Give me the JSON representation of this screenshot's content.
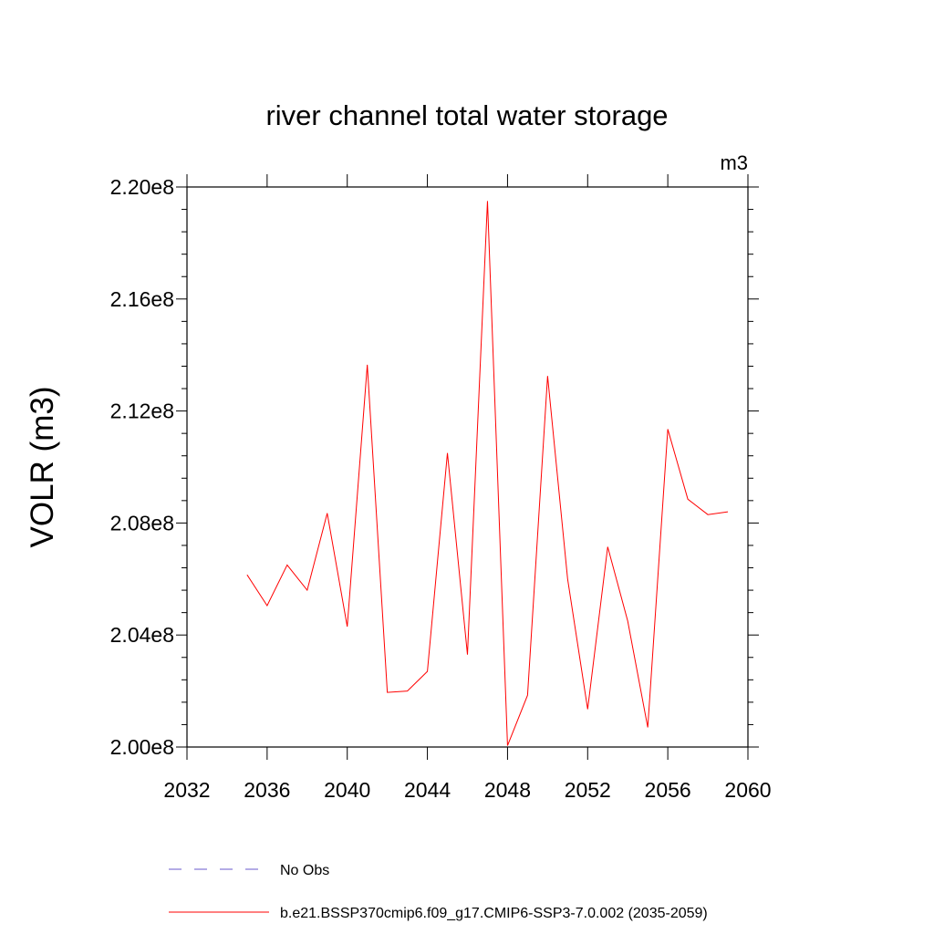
{
  "chart_data": {
    "type": "line",
    "title": "river channel total water storage",
    "units": "m3",
    "ylabel": "VOLR  (m3)",
    "xlabel": "",
    "xlim": [
      2032,
      2060
    ],
    "ylim": [
      200000000,
      220000000
    ],
    "x_ticks": [
      2032,
      2036,
      2040,
      2044,
      2048,
      2052,
      2056,
      2060
    ],
    "x_tick_labels": [
      "2032",
      "2036",
      "2040",
      "2044",
      "2048",
      "2052",
      "2056",
      "2060"
    ],
    "y_ticks": [
      200000000,
      204000000,
      208000000,
      212000000,
      216000000,
      220000000
    ],
    "y_tick_labels": [
      "2.00e8",
      "2.04e8",
      "2.08e8",
      "2.12e8",
      "2.16e8",
      "2.20e8"
    ],
    "grid": false,
    "legend_position": "bottom",
    "series": [
      {
        "name": "No Obs",
        "style": "dashed",
        "color": "#6a5acd",
        "x": [],
        "values": []
      },
      {
        "name": "b.e21.BSSP370cmip6.f09_g17.CMIP6-SSP3-7.0.002 (2035-2059)",
        "style": "solid",
        "color": "#ff0000",
        "x": [
          2035,
          2036,
          2037,
          2038,
          2039,
          2040,
          2041,
          2042,
          2043,
          2044,
          2045,
          2046,
          2047,
          2048,
          2049,
          2050,
          2051,
          2052,
          2053,
          2054,
          2055,
          2056,
          2057,
          2058,
          2059
        ],
        "values": [
          206150000,
          205050000,
          206500000,
          205600000,
          208350000,
          204300000,
          213650000,
          201950000,
          202000000,
          202700000,
          210500000,
          203300000,
          219500000,
          200050000,
          201850000,
          213250000,
          206000000,
          201350000,
          207150000,
          204500000,
          200700000,
          211350000,
          208850000,
          208300000,
          208400000
        ]
      }
    ]
  }
}
